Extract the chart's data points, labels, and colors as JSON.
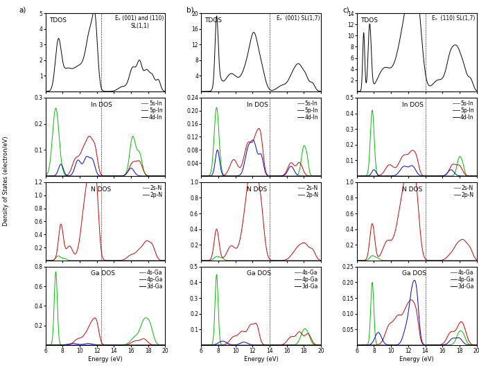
{
  "col_a": {
    "annot": "Eᵥ (001) and (110)\nSL(1,1)",
    "vline": 12.5,
    "tdos_ylim": [
      0,
      5
    ],
    "tdos_yticks": [
      1,
      2,
      3,
      4,
      5
    ],
    "in_ylim": [
      0,
      0.3
    ],
    "in_yticks": [
      0.1,
      0.2,
      0.3
    ],
    "n_ylim": [
      0,
      1.2
    ],
    "n_yticks": [
      0.2,
      0.4,
      0.6,
      0.8,
      1.0,
      1.2
    ],
    "ga_ylim": [
      0,
      0.8
    ],
    "ga_yticks": [
      0.2,
      0.4,
      0.6,
      0.8
    ]
  },
  "col_b": {
    "annot": "Eᵥ  (001) SL(1,7)",
    "vline": 14.0,
    "tdos_ylim": [
      0,
      20
    ],
    "tdos_yticks": [
      4,
      8,
      12,
      16,
      20
    ],
    "in_ylim": [
      0,
      0.24
    ],
    "in_yticks": [
      0.04,
      0.08,
      0.12,
      0.16,
      0.2,
      0.24
    ],
    "n_ylim": [
      0,
      1.0
    ],
    "n_yticks": [
      0.2,
      0.4,
      0.6,
      0.8,
      1.0
    ],
    "ga_ylim": [
      0,
      0.5
    ],
    "ga_yticks": [
      0.1,
      0.2,
      0.3,
      0.4,
      0.5
    ]
  },
  "col_c": {
    "annot": "Eᵥ  (110) SL(1,7)",
    "vline": 14.0,
    "tdos_ylim": [
      0,
      14
    ],
    "tdos_yticks": [
      2,
      4,
      6,
      8,
      10,
      12,
      14
    ],
    "in_ylim": [
      0,
      0.5
    ],
    "in_yticks": [
      0.1,
      0.2,
      0.3,
      0.4,
      0.5
    ],
    "n_ylim": [
      0,
      1.0
    ],
    "n_yticks": [
      0.2,
      0.4,
      0.6,
      0.8,
      1.0
    ],
    "ga_ylim": [
      0,
      0.25
    ],
    "ga_yticks": [
      0.05,
      0.1,
      0.15,
      0.2,
      0.25
    ]
  },
  "xmin": 6,
  "xmax": 20,
  "xlabel": "Energy (eV)",
  "ylabel": "Density of States (electron/eV)",
  "colors": {
    "green": "#00bb00",
    "red": "#cc0000",
    "blue": "#0000cc",
    "black": "#000000"
  }
}
